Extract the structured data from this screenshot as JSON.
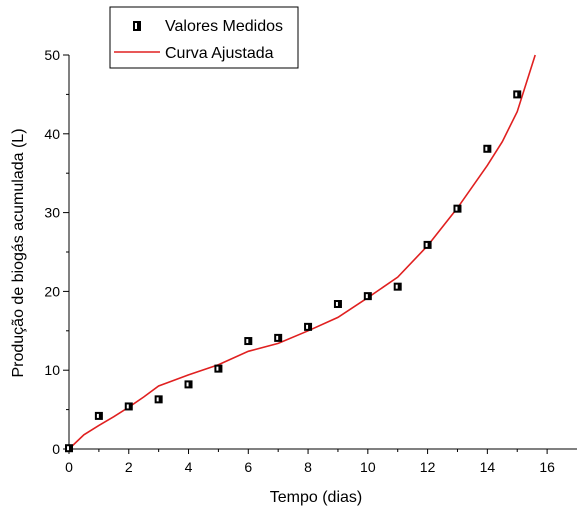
{
  "chart_data": {
    "type": "scatter",
    "xlabel": "Tempo (dias)",
    "ylabel": "Produção de biogás acumulada (L)",
    "xlim": [
      0,
      17
    ],
    "ylim": [
      0,
      50
    ],
    "xticks": [
      0,
      2,
      4,
      6,
      8,
      10,
      12,
      14,
      16
    ],
    "yticks": [
      0,
      10,
      20,
      30,
      40,
      50
    ],
    "grid": false,
    "legend_position": "top-left",
    "series": [
      {
        "name": "Valores Medidos",
        "kind": "scatter",
        "marker": "square",
        "color": "#000000",
        "x": [
          0,
          1,
          2,
          3,
          4,
          5,
          6,
          7,
          8,
          9,
          10,
          11,
          12,
          13,
          14,
          15
        ],
        "y": [
          0.1,
          4.2,
          5.4,
          6.3,
          8.2,
          10.2,
          13.7,
          14.1,
          15.5,
          18.4,
          19.4,
          20.6,
          25.9,
          30.5,
          38.1,
          45.0
        ]
      },
      {
        "name": "Curva Ajustada",
        "kind": "line",
        "color": "#e02020",
        "x": [
          0,
          0.5,
          1,
          1.5,
          2,
          2.5,
          3,
          4,
          5,
          6,
          7,
          8,
          9,
          10,
          11,
          12,
          13,
          14,
          14.5,
          15,
          15.6
        ],
        "y": [
          0,
          1.8,
          3.0,
          4.1,
          5.3,
          6.6,
          8.0,
          9.4,
          10.7,
          12.4,
          13.4,
          15.0,
          16.7,
          19.2,
          21.8,
          25.8,
          30.6,
          36.0,
          39.0,
          42.8,
          50.0
        ]
      }
    ]
  }
}
